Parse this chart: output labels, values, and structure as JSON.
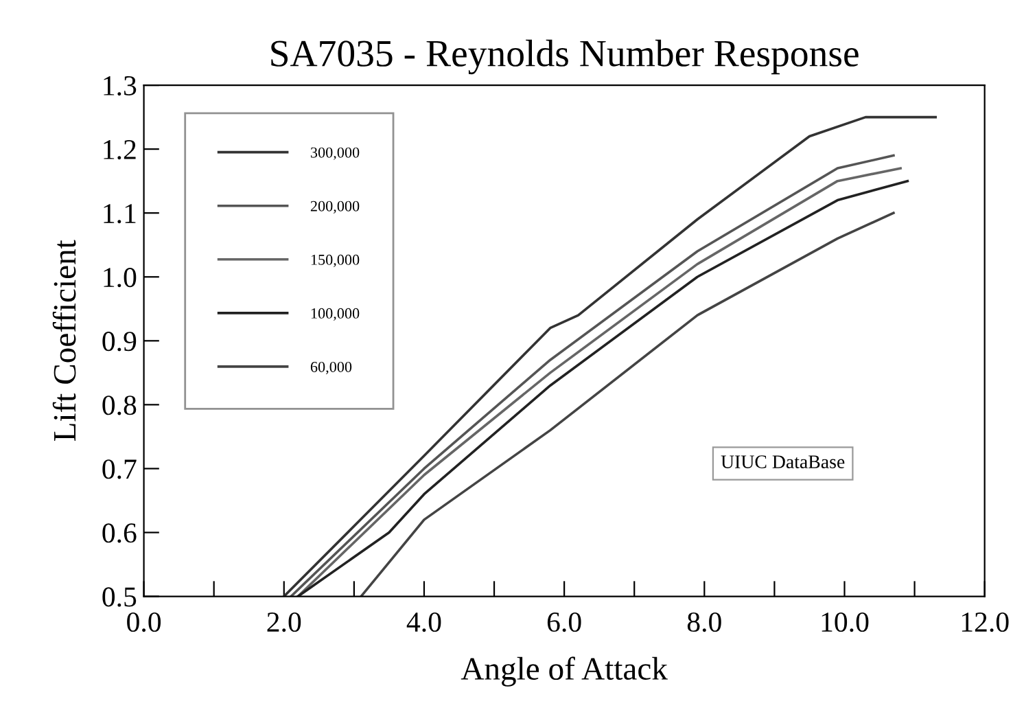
{
  "chart_data": {
    "type": "line",
    "title": "SA7035 - Reynolds Number Response",
    "xlabel": "Angle of Attack",
    "ylabel": "Lift Coefficient",
    "xlim": [
      0,
      12
    ],
    "ylim": [
      0.5,
      1.3
    ],
    "xticks": [
      {
        "value": 0,
        "label": "0.0"
      },
      {
        "value": 1,
        "label": null
      },
      {
        "value": 2,
        "label": "2.0"
      },
      {
        "value": 3,
        "label": null
      },
      {
        "value": 4,
        "label": "4.0"
      },
      {
        "value": 5,
        "label": null
      },
      {
        "value": 6,
        "label": "6.0"
      },
      {
        "value": 7,
        "label": null
      },
      {
        "value": 8,
        "label": "8.0"
      },
      {
        "value": 9,
        "label": null
      },
      {
        "value": 10,
        "label": "10.0"
      },
      {
        "value": 11,
        "label": null
      },
      {
        "value": 12,
        "label": "12.0"
      }
    ],
    "yticks": [
      {
        "value": 0.5,
        "label": "0.5"
      },
      {
        "value": 0.6,
        "label": "0.6"
      },
      {
        "value": 0.7,
        "label": "0.7"
      },
      {
        "value": 0.8,
        "label": "0.8"
      },
      {
        "value": 0.9,
        "label": "0.9"
      },
      {
        "value": 1.0,
        "label": "1.0"
      },
      {
        "value": 1.1,
        "label": "1.1"
      },
      {
        "value": 1.2,
        "label": "1.2"
      },
      {
        "value": 1.3,
        "label": "1.3"
      }
    ],
    "grid": false,
    "legend": "top left",
    "marker": "none",
    "line_style": "solid",
    "annotations": [
      "UIUC DataBase"
    ],
    "series": [
      {
        "name": "300,000",
        "color": "#333333",
        "x": [
          2.0,
          4.0,
          5.8,
          6.2,
          7.9,
          9.5,
          10.3,
          11.3
        ],
        "values": [
          0.5,
          0.72,
          0.92,
          0.94,
          1.09,
          1.22,
          1.25,
          1.25
        ]
      },
      {
        "name": "200,000",
        "color": "#555555",
        "x": [
          2.1,
          4.0,
          5.8,
          7.9,
          9.9,
          10.7
        ],
        "values": [
          0.5,
          0.7,
          0.87,
          1.04,
          1.17,
          1.19
        ]
      },
      {
        "name": "150,000",
        "color": "#666666",
        "x": [
          2.2,
          4.0,
          5.8,
          7.9,
          9.9,
          10.8
        ],
        "values": [
          0.5,
          0.69,
          0.85,
          1.02,
          1.15,
          1.17
        ]
      },
      {
        "name": "100,000",
        "color": "#222222",
        "x": [
          2.2,
          3.5,
          4.0,
          5.8,
          7.9,
          9.9,
          10.9
        ],
        "values": [
          0.5,
          0.6,
          0.66,
          0.83,
          1.0,
          1.12,
          1.15
        ]
      },
      {
        "name": "60,000",
        "color": "#444444",
        "x": [
          3.1,
          4.0,
          5.8,
          7.9,
          9.9,
          10.7
        ],
        "values": [
          0.5,
          0.62,
          0.76,
          0.94,
          1.06,
          1.1
        ]
      }
    ]
  }
}
